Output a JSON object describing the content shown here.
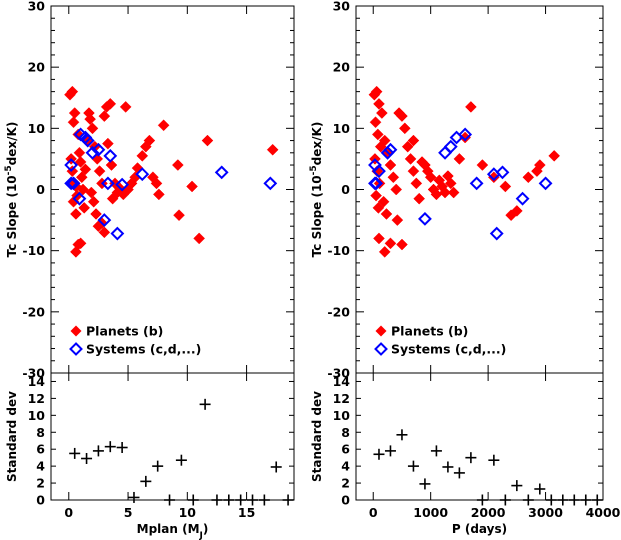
{
  "chart_data": [
    {
      "id": "left-top",
      "type": "scatter",
      "xlabel": "Mplan (M",
      "xlabel_sub": "J",
      "xlabel_close": ")",
      "ylabel_pre": "Tc Slope (10",
      "ylabel_sup": "-5",
      "ylabel_post": "dex/K)",
      "xlim": [
        -1.5,
        19
      ],
      "ylim": [
        -30,
        30
      ],
      "xticks": [
        0,
        5,
        10,
        15
      ],
      "yticks": [
        -30,
        -20,
        -10,
        0,
        10,
        20,
        30
      ],
      "legend_placement": "bottom-left",
      "series": [
        {
          "name": "Planets (b)",
          "marker": "filled-diamond",
          "color": "#ff0000",
          "points": [
            [
              0.1,
              15.5
            ],
            [
              0.3,
              16
            ],
            [
              0.4,
              11
            ],
            [
              0.5,
              12.5
            ],
            [
              0.8,
              9
            ],
            [
              0.2,
              5
            ],
            [
              0.3,
              3
            ],
            [
              0.5,
              1
            ],
            [
              0.6,
              0.5
            ],
            [
              0.7,
              -1
            ],
            [
              0.4,
              -2
            ],
            [
              0.6,
              -4
            ],
            [
              0.8,
              -9
            ],
            [
              0.6,
              -10.2
            ],
            [
              1.0,
              -8.8
            ],
            [
              0.9,
              6
            ],
            [
              1.0,
              4.5
            ],
            [
              1.1,
              2
            ],
            [
              1.2,
              0
            ],
            [
              1.3,
              -3
            ],
            [
              1.5,
              8
            ],
            [
              1.7,
              12.5
            ],
            [
              1.8,
              11.5
            ],
            [
              2.0,
              10
            ],
            [
              2.2,
              7
            ],
            [
              2.4,
              5
            ],
            [
              2.6,
              3
            ],
            [
              2.8,
              1
            ],
            [
              1.9,
              -0.5
            ],
            [
              2.1,
              -2
            ],
            [
              2.3,
              -4
            ],
            [
              2.5,
              -6
            ],
            [
              3.0,
              12
            ],
            [
              3.2,
              13.5
            ],
            [
              3.5,
              14
            ],
            [
              3.3,
              7.5
            ],
            [
              3.6,
              4
            ],
            [
              3.9,
              1
            ],
            [
              4.1,
              -0.5
            ],
            [
              2.8,
              -5.5
            ],
            [
              3.0,
              -7
            ],
            [
              4.3,
              0.2
            ],
            [
              4.6,
              -0.8
            ],
            [
              5.0,
              0
            ],
            [
              5.3,
              1
            ],
            [
              5.6,
              2
            ],
            [
              5.8,
              3.5
            ],
            [
              6.2,
              5.5
            ],
            [
              6.5,
              7
            ],
            [
              6.8,
              8
            ],
            [
              7.1,
              2
            ],
            [
              7.4,
              1
            ],
            [
              7.6,
              -0.8
            ],
            [
              8.0,
              10.5
            ],
            [
              9.2,
              4
            ],
            [
              9.3,
              -4.2
            ],
            [
              10.4,
              0.5
            ],
            [
              11.0,
              -8
            ],
            [
              11.7,
              8
            ],
            [
              17.2,
              6.5
            ],
            [
              4.8,
              13.5
            ],
            [
              1.4,
              3.3
            ],
            [
              3.7,
              -1.5
            ]
          ]
        },
        {
          "name": "Systems (c,d,...)",
          "marker": "open-diamond",
          "color": "#0000ff",
          "points": [
            [
              0.2,
              4
            ],
            [
              0.2,
              1
            ],
            [
              0.4,
              1
            ],
            [
              0.9,
              -1.5
            ],
            [
              1.0,
              9
            ],
            [
              1.4,
              8.5
            ],
            [
              1.6,
              8
            ],
            [
              2.0,
              6
            ],
            [
              2.5,
              6.5
            ],
            [
              3.5,
              5.5
            ],
            [
              3.3,
              1
            ],
            [
              3.0,
              -5
            ],
            [
              4.1,
              -7.2
            ],
            [
              4.5,
              0.8
            ],
            [
              6.2,
              2.5
            ],
            [
              12.9,
              2.8
            ],
            [
              17.0,
              1
            ]
          ]
        }
      ]
    },
    {
      "id": "left-bottom",
      "type": "scatter",
      "ylabel": "Standard dev",
      "xlim": [
        -1.5,
        19
      ],
      "ylim": [
        0,
        15
      ],
      "yticks": [
        0,
        2,
        4,
        6,
        8,
        10,
        12,
        14
      ],
      "series": [
        {
          "name": "",
          "marker": "plus",
          "color": "#000000",
          "points": [
            [
              0.5,
              5.5
            ],
            [
              1.5,
              4.9
            ],
            [
              2.5,
              5.8
            ],
            [
              3.5,
              6.3
            ],
            [
              4.5,
              6.2
            ],
            [
              5.5,
              0.3
            ],
            [
              6.5,
              2.2
            ],
            [
              7.5,
              4.0
            ],
            [
              8.5,
              0
            ],
            [
              9.5,
              4.7
            ],
            [
              10.5,
              0
            ],
            [
              11.5,
              11.3
            ],
            [
              12.5,
              0
            ],
            [
              13.5,
              0
            ],
            [
              14.5,
              0
            ],
            [
              15.5,
              0
            ],
            [
              16.5,
              0
            ],
            [
              17.5,
              3.9
            ],
            [
              18.5,
              0
            ]
          ]
        }
      ]
    },
    {
      "id": "right-top",
      "type": "scatter",
      "xlabel": "P (days)",
      "ylabel_pre": "Tc Slope (10",
      "ylabel_sup": "-5",
      "ylabel_post": "dex/K)",
      "xlim": [
        -300,
        4000
      ],
      "ylim": [
        -30,
        30
      ],
      "xticks": [
        0,
        1000,
        2000,
        3000,
        4000
      ],
      "yticks": [
        -30,
        -20,
        -10,
        0,
        10,
        20,
        30
      ],
      "legend_placement": "bottom-left",
      "series": [
        {
          "name": "Planets (b)",
          "marker": "filled-diamond",
          "color": "#ff0000",
          "points": [
            [
              20,
              15.5
            ],
            [
              60,
              16
            ],
            [
              100,
              14
            ],
            [
              150,
              12.5
            ],
            [
              40,
              11
            ],
            [
              80,
              9
            ],
            [
              130,
              7
            ],
            [
              30,
              5
            ],
            [
              70,
              3
            ],
            [
              110,
              1
            ],
            [
              50,
              -1
            ],
            [
              90,
              -3
            ],
            [
              200,
              8
            ],
            [
              250,
              6
            ],
            [
              300,
              4
            ],
            [
              350,
              2
            ],
            [
              400,
              0
            ],
            [
              180,
              -2
            ],
            [
              230,
              -4
            ],
            [
              100,
              -8
            ],
            [
              200,
              -10.2
            ],
            [
              300,
              -8.8
            ],
            [
              500,
              12
            ],
            [
              550,
              10
            ],
            [
              600,
              7
            ],
            [
              650,
              5
            ],
            [
              700,
              3
            ],
            [
              750,
              1
            ],
            [
              450,
              12.5
            ],
            [
              800,
              -1.5
            ],
            [
              500,
              -9
            ],
            [
              420,
              -5
            ],
            [
              900,
              4
            ],
            [
              950,
              3
            ],
            [
              1000,
              2
            ],
            [
              1050,
              0
            ],
            [
              1100,
              -0.8
            ],
            [
              1150,
              1.5
            ],
            [
              1200,
              0.5
            ],
            [
              1300,
              2.2
            ],
            [
              1350,
              1
            ],
            [
              1400,
              -0.5
            ],
            [
              1500,
              5
            ],
            [
              1600,
              8.5
            ],
            [
              1700,
              13.5
            ],
            [
              1900,
              4
            ],
            [
              2100,
              2
            ],
            [
              2300,
              0.5
            ],
            [
              2400,
              -4.2
            ],
            [
              2500,
              -3.5
            ],
            [
              2700,
              2
            ],
            [
              2850,
              3
            ],
            [
              2900,
              4
            ],
            [
              3150,
              5.5
            ],
            [
              1250,
              -0.5
            ],
            [
              700,
              8
            ],
            [
              850,
              4.5
            ]
          ]
        },
        {
          "name": "Systems (c,d,...)",
          "marker": "open-diamond",
          "color": "#0000ff",
          "points": [
            [
              30,
              4
            ],
            [
              30,
              1
            ],
            [
              50,
              1
            ],
            [
              100,
              3
            ],
            [
              250,
              6
            ],
            [
              300,
              6.5
            ],
            [
              900,
              -4.8
            ],
            [
              1250,
              6
            ],
            [
              1350,
              7
            ],
            [
              1450,
              8.5
            ],
            [
              1600,
              9
            ],
            [
              1800,
              1
            ],
            [
              2100,
              2.5
            ],
            [
              2250,
              2.8
            ],
            [
              2600,
              -1.5
            ],
            [
              2150,
              -7.2
            ],
            [
              3000,
              1
            ]
          ]
        }
      ]
    },
    {
      "id": "right-bottom",
      "type": "scatter",
      "ylabel": "Standard dev",
      "xlim": [
        -300,
        4000
      ],
      "ylim": [
        0,
        15
      ],
      "yticks": [
        0,
        2,
        4,
        6,
        8,
        10,
        12,
        14
      ],
      "series": [
        {
          "name": "",
          "marker": "plus",
          "color": "#000000",
          "points": [
            [
              100,
              5.4
            ],
            [
              300,
              5.8
            ],
            [
              500,
              7.7
            ],
            [
              700,
              4
            ],
            [
              900,
              1.9
            ],
            [
              1100,
              5.8
            ],
            [
              1300,
              3.9
            ],
            [
              1500,
              3.2
            ],
            [
              1700,
              5
            ],
            [
              1900,
              0
            ],
            [
              2100,
              4.7
            ],
            [
              2300,
              0
            ],
            [
              2500,
              1.7
            ],
            [
              2700,
              0
            ],
            [
              2900,
              1.3
            ],
            [
              3100,
              0
            ],
            [
              3300,
              0
            ],
            [
              3500,
              0
            ],
            [
              3700,
              0
            ],
            [
              3900,
              0
            ]
          ]
        }
      ]
    }
  ]
}
